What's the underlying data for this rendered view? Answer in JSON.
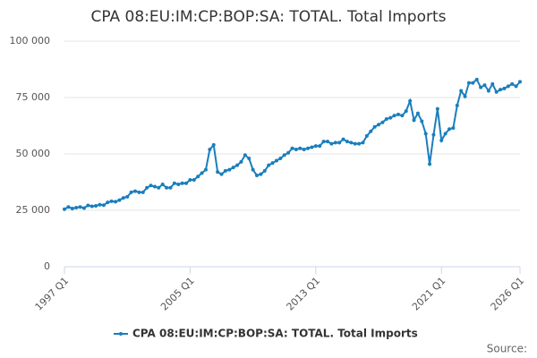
{
  "chart_data": {
    "type": "line",
    "title": "CPA 08:EU:IM:CP:BOP:SA: TOTAL. Total Imports",
    "source": "Source:",
    "categories": [
      "1997 Q1",
      null,
      null,
      null,
      null,
      null,
      null,
      null,
      null,
      null,
      null,
      null,
      null,
      null,
      null,
      null,
      null,
      null,
      null,
      null,
      null,
      null,
      null,
      null,
      null,
      null,
      null,
      null,
      null,
      null,
      null,
      null,
      "2005 Q1",
      null,
      null,
      null,
      null,
      null,
      null,
      null,
      null,
      null,
      null,
      null,
      null,
      null,
      null,
      null,
      null,
      null,
      null,
      null,
      null,
      null,
      null,
      null,
      null,
      null,
      null,
      null,
      null,
      null,
      null,
      null,
      "2013 Q1",
      null,
      null,
      null,
      null,
      null,
      null,
      null,
      null,
      null,
      null,
      null,
      null,
      null,
      null,
      null,
      null,
      null,
      null,
      null,
      null,
      null,
      null,
      null,
      null,
      null,
      null,
      null,
      null,
      null,
      null,
      null,
      "2021 Q1",
      null,
      null,
      null,
      null,
      null,
      null,
      null,
      null,
      null,
      null,
      null,
      null,
      null,
      null,
      null,
      null,
      null,
      null,
      null,
      "2026 Q1"
    ],
    "series": [
      {
        "name": "CPA 08:EU:IM:CP:BOP:SA: TOTAL. Total Imports",
        "color": "#1a7ebd",
        "values": [
          25500,
          26500,
          25800,
          26200,
          26500,
          26000,
          27200,
          26800,
          27000,
          27500,
          27300,
          28500,
          29000,
          28800,
          29500,
          30500,
          31000,
          33000,
          33500,
          33000,
          33000,
          35000,
          36000,
          35500,
          35000,
          36500,
          35000,
          35000,
          37000,
          36500,
          37000,
          37000,
          38500,
          38500,
          40000,
          41500,
          43000,
          52000,
          54000,
          42000,
          41000,
          42500,
          43000,
          44000,
          45000,
          46500,
          49500,
          48000,
          43000,
          40500,
          41000,
          42500,
          45000,
          46000,
          47000,
          48000,
          49500,
          50500,
          52500,
          52000,
          52500,
          52000,
          52500,
          53000,
          53500,
          53500,
          55500,
          55500,
          54500,
          55000,
          55000,
          56500,
          55500,
          55000,
          54500,
          54500,
          55000,
          58000,
          60000,
          62000,
          63000,
          64000,
          65500,
          66000,
          67000,
          67500,
          67000,
          69000,
          73500,
          65000,
          68000,
          64500,
          59000,
          45500,
          58500,
          70000,
          56000,
          59000,
          61000,
          61500,
          71500,
          78000,
          75500,
          81500,
          81500,
          83000,
          79500,
          80500,
          78000,
          81000,
          77500,
          78500,
          79000,
          80000,
          81000,
          80000,
          82000
        ]
      }
    ],
    "ylim": [
      0,
      100000
    ],
    "yticks": [
      0,
      {
        "value": 25000,
        "label": "25 000"
      },
      {
        "value": 50000,
        "label": "50 000"
      },
      {
        "value": 75000,
        "label": "75 000"
      },
      {
        "value": 100000,
        "label": "100 000"
      }
    ],
    "grid": true
  }
}
